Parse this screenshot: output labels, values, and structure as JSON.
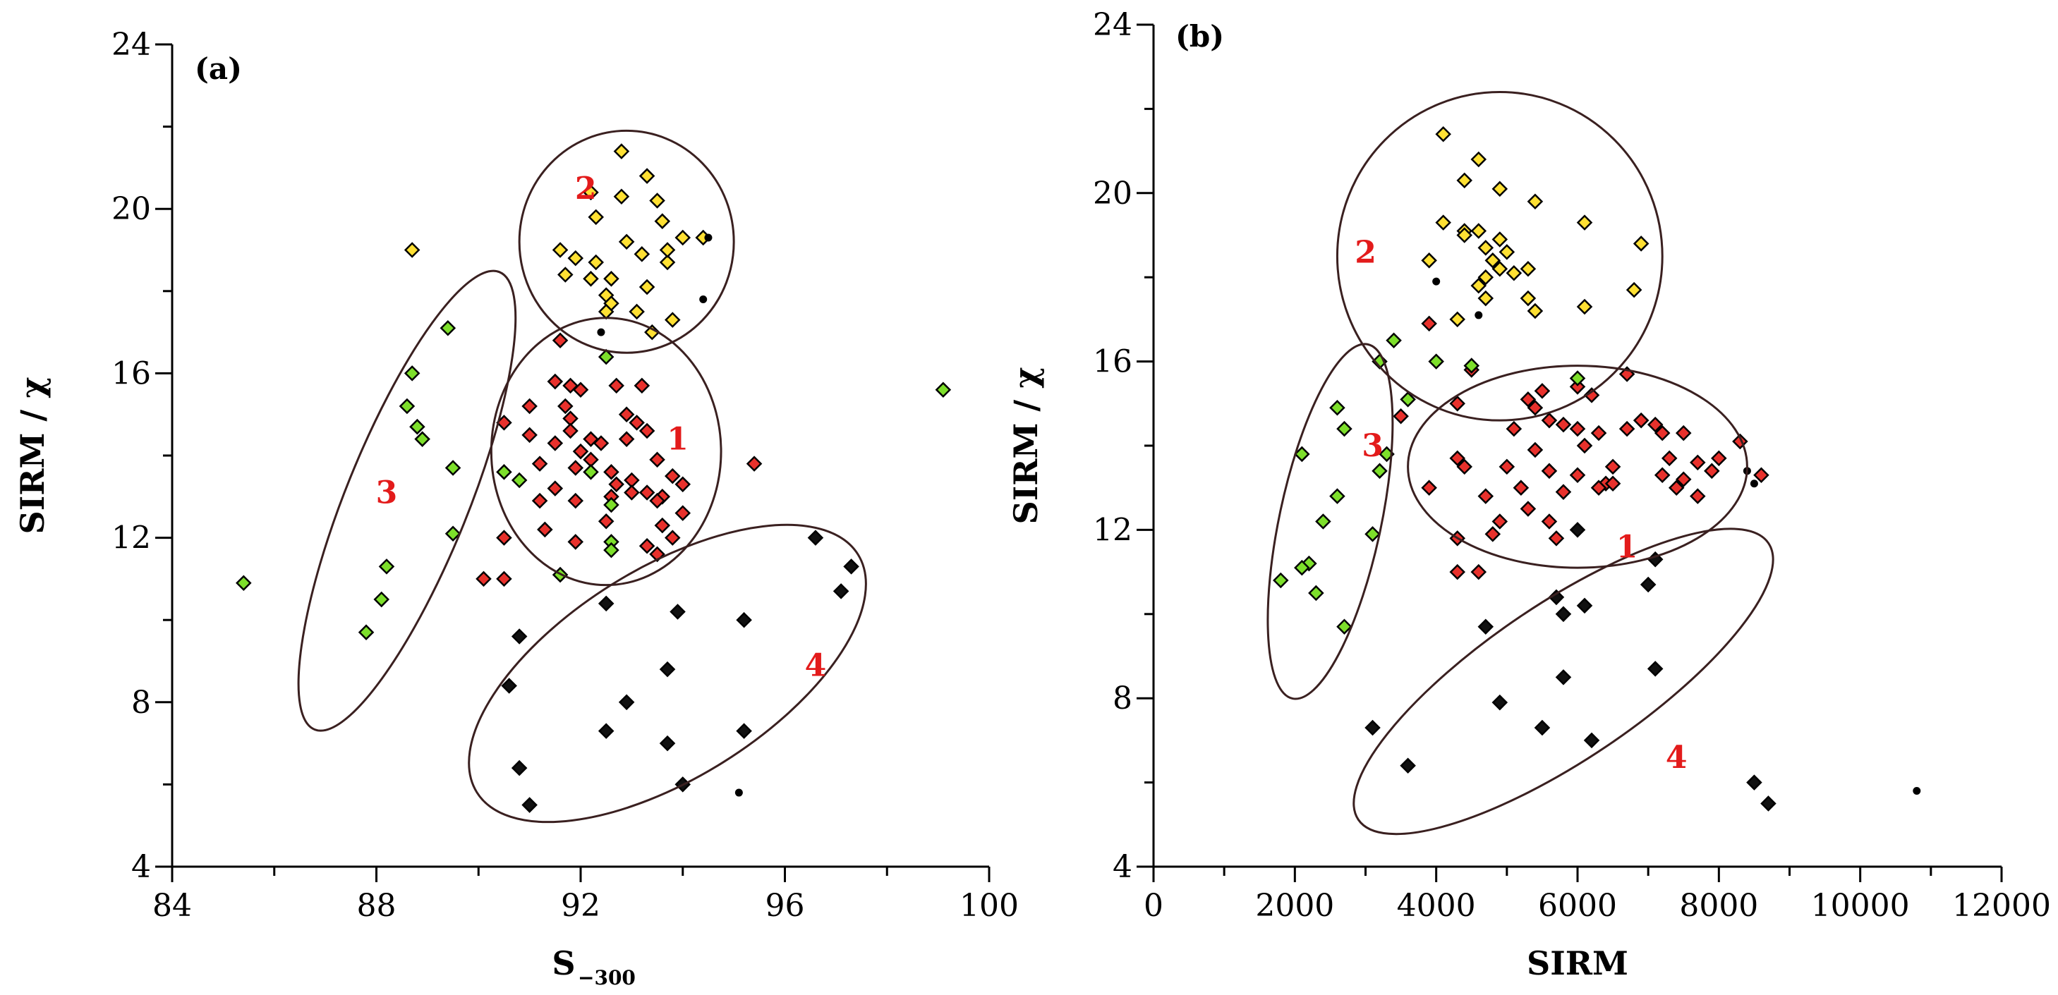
{
  "colors": {
    "1": "#e8312c",
    "2": "#ffe033",
    "3": "#7ddf2b",
    "4": "#111111",
    "label": "#e31b1b"
  },
  "chart_data": [
    {
      "panel": "(a)",
      "type": "scatter",
      "xlabel": "S",
      "xlabel_sub": "−300",
      "ylabel": "SIRM / χ",
      "xlim": [
        84,
        100
      ],
      "ylim": [
        4,
        24
      ],
      "xticks": [
        "84",
        "88",
        "92",
        "96",
        "100"
      ],
      "yticks": [
        "4",
        "8",
        "12",
        "16",
        "20",
        "24"
      ],
      "cluster_labels": [
        {
          "text": "1",
          "x": 93.9,
          "y": 14.4
        },
        {
          "text": "2",
          "x": 92.1,
          "y": 20.5
        },
        {
          "text": "3",
          "x": 88.2,
          "y": 13.1
        },
        {
          "text": "4",
          "x": 96.6,
          "y": 8.9
        }
      ],
      "ellipses": [
        {
          "cx": 92.5,
          "cy": 14.1,
          "rx": 2.25,
          "ry": 3.25,
          "angle": 0
        },
        {
          "cx": 92.9,
          "cy": 19.2,
          "rx": 2.1,
          "ry": 2.7,
          "angle": 0
        },
        {
          "cx": 88.6,
          "cy": 12.9,
          "rx": 1.2,
          "ry": 6.0,
          "angle": 22
        },
        {
          "cx": 93.7,
          "cy": 8.7,
          "rx": 4.4,
          "ry": 2.55,
          "angle": -32
        }
      ],
      "series": [
        {
          "name": "1",
          "points": [
            [
              91.5,
              15.8
            ],
            [
              91.8,
              15.7
            ],
            [
              92.0,
              15.6
            ],
            [
              92.7,
              15.7
            ],
            [
              93.2,
              15.7
            ],
            [
              91.0,
              15.2
            ],
            [
              91.7,
              15.2
            ],
            [
              92.9,
              15.0
            ],
            [
              90.5,
              14.8
            ],
            [
              91.8,
              14.9
            ],
            [
              93.1,
              14.8
            ],
            [
              93.3,
              14.6
            ],
            [
              91.0,
              14.5
            ],
            [
              91.5,
              14.3
            ],
            [
              91.8,
              14.6
            ],
            [
              92.2,
              14.4
            ],
            [
              92.4,
              14.3
            ],
            [
              92.9,
              14.4
            ],
            [
              92.0,
              14.1
            ],
            [
              91.2,
              13.8
            ],
            [
              92.2,
              13.9
            ],
            [
              93.5,
              13.9
            ],
            [
              91.9,
              13.7
            ],
            [
              92.6,
              13.6
            ],
            [
              93.0,
              13.4
            ],
            [
              93.8,
              13.5
            ],
            [
              94.0,
              13.3
            ],
            [
              91.5,
              13.2
            ],
            [
              92.7,
              13.3
            ],
            [
              93.3,
              13.1
            ],
            [
              93.6,
              13.0
            ],
            [
              91.9,
              12.9
            ],
            [
              92.6,
              13.0
            ],
            [
              93.0,
              13.1
            ],
            [
              91.2,
              12.9
            ],
            [
              93.5,
              12.9
            ],
            [
              94.0,
              12.6
            ],
            [
              92.5,
              12.4
            ],
            [
              90.5,
              12.0
            ],
            [
              91.9,
              11.9
            ],
            [
              93.3,
              11.8
            ],
            [
              93.5,
              11.6
            ],
            [
              93.8,
              12.0
            ],
            [
              90.1,
              11.0
            ],
            [
              90.5,
              11.0
            ],
            [
              95.4,
              13.8
            ],
            [
              91.3,
              12.2
            ],
            [
              93.6,
              12.3
            ],
            [
              91.6,
              16.8
            ]
          ]
        },
        {
          "name": "2",
          "points": [
            [
              92.8,
              21.4
            ],
            [
              93.3,
              20.8
            ],
            [
              92.2,
              20.4
            ],
            [
              92.8,
              20.3
            ],
            [
              93.5,
              20.2
            ],
            [
              92.3,
              19.8
            ],
            [
              93.6,
              19.7
            ],
            [
              88.7,
              19.0
            ],
            [
              91.6,
              19.0
            ],
            [
              92.9,
              19.2
            ],
            [
              93.2,
              18.9
            ],
            [
              94.0,
              19.3
            ],
            [
              91.9,
              18.8
            ],
            [
              92.3,
              18.7
            ],
            [
              91.7,
              18.4
            ],
            [
              92.2,
              18.3
            ],
            [
              92.6,
              18.3
            ],
            [
              93.3,
              18.1
            ],
            [
              93.7,
              18.7
            ],
            [
              94.4,
              19.3
            ],
            [
              92.5,
              17.9
            ],
            [
              93.1,
              17.5
            ],
            [
              92.6,
              17.7
            ],
            [
              92.5,
              17.5
            ],
            [
              93.4,
              17.0
            ],
            [
              93.8,
              17.3
            ],
            [
              93.7,
              19.0
            ]
          ]
        },
        {
          "name": "3",
          "points": [
            [
              89.4,
              17.1
            ],
            [
              88.7,
              16.0
            ],
            [
              88.6,
              15.2
            ],
            [
              88.8,
              14.7
            ],
            [
              88.9,
              14.4
            ],
            [
              89.5,
              13.7
            ],
            [
              90.5,
              13.6
            ],
            [
              90.8,
              13.4
            ],
            [
              89.5,
              12.1
            ],
            [
              88.2,
              11.3
            ],
            [
              88.1,
              10.5
            ],
            [
              87.8,
              9.7
            ],
            [
              85.4,
              10.9
            ],
            [
              91.6,
              11.1
            ],
            [
              92.2,
              13.6
            ],
            [
              92.6,
              12.8
            ],
            [
              92.6,
              11.9
            ],
            [
              92.6,
              11.7
            ],
            [
              92.5,
              16.4
            ],
            [
              99.1,
              15.6
            ]
          ]
        },
        {
          "name": "4",
          "points": [
            [
              90.6,
              8.4
            ],
            [
              90.8,
              9.6
            ],
            [
              92.5,
              10.4
            ],
            [
              93.9,
              10.2
            ],
            [
              95.2,
              10.0
            ],
            [
              96.6,
              12.0
            ],
            [
              97.3,
              11.3
            ],
            [
              97.1,
              10.7
            ],
            [
              92.9,
              8.0
            ],
            [
              93.7,
              8.8
            ],
            [
              92.5,
              7.3
            ],
            [
              93.7,
              7.0
            ],
            [
              95.2,
              7.3
            ],
            [
              94.0,
              6.0
            ],
            [
              90.8,
              6.4
            ],
            [
              91.0,
              5.5
            ]
          ]
        }
      ],
      "small_dots": [
        [
          94.4,
          17.8
        ],
        [
          94.5,
          19.3
        ],
        [
          95.1,
          5.8
        ],
        [
          92.4,
          17.0
        ]
      ]
    },
    {
      "panel": "(b)",
      "type": "scatter",
      "xlabel": "SIRM",
      "ylabel": "SIRM / χ",
      "xlim": [
        0,
        12000
      ],
      "ylim": [
        4,
        24
      ],
      "xticks": [
        "0",
        "2000",
        "4000",
        "6000",
        "8000",
        "10000",
        "12000"
      ],
      "yticks": [
        "4",
        "8",
        "12",
        "16",
        "20",
        "24"
      ],
      "cluster_labels": [
        {
          "text": "1",
          "x": 6700,
          "y": 11.6
        },
        {
          "text": "2",
          "x": 3000,
          "y": 18.6
        },
        {
          "text": "3",
          "x": 3100,
          "y": 14.0
        },
        {
          "text": "4",
          "x": 7400,
          "y": 6.6
        }
      ],
      "ellipses": [
        {
          "cx": 4900,
          "cy": 18.5,
          "rx": 2300,
          "ry": 3.9,
          "angle": 0
        },
        {
          "cx": 6000,
          "cy": 13.5,
          "rx": 2400,
          "ry": 2.4,
          "angle": 0
        },
        {
          "cx": 2500,
          "cy": 12.2,
          "rx": 720,
          "ry": 4.3,
          "angle": 12
        },
        {
          "cx": 5800,
          "cy": 8.4,
          "rx": 3500,
          "ry": 1.85,
          "angle": -34
        }
      ],
      "series": [
        {
          "name": "1",
          "points": [
            [
              3900,
              16.9
            ],
            [
              4300,
              15.0
            ],
            [
              4500,
              15.8
            ],
            [
              5300,
              15.1
            ],
            [
              5500,
              15.3
            ],
            [
              5400,
              14.9
            ],
            [
              5600,
              14.6
            ],
            [
              6000,
              15.4
            ],
            [
              6200,
              15.2
            ],
            [
              6700,
              15.7
            ],
            [
              5100,
              14.4
            ],
            [
              5800,
              14.5
            ],
            [
              6000,
              14.4
            ],
            [
              6300,
              14.3
            ],
            [
              6700,
              14.4
            ],
            [
              6900,
              14.6
            ],
            [
              7100,
              14.5
            ],
            [
              7200,
              14.3
            ],
            [
              7500,
              14.3
            ],
            [
              3500,
              14.7
            ],
            [
              5400,
              13.9
            ],
            [
              6100,
              14.0
            ],
            [
              6500,
              13.5
            ],
            [
              7300,
              13.7
            ],
            [
              7700,
              13.6
            ],
            [
              8000,
              13.7
            ],
            [
              8300,
              14.1
            ],
            [
              4300,
              13.7
            ],
            [
              4400,
              13.5
            ],
            [
              5000,
              13.5
            ],
            [
              5600,
              13.4
            ],
            [
              6000,
              13.3
            ],
            [
              6400,
              13.1
            ],
            [
              7200,
              13.3
            ],
            [
              7500,
              13.2
            ],
            [
              7900,
              13.4
            ],
            [
              8600,
              13.3
            ],
            [
              3900,
              13.0
            ],
            [
              4700,
              12.8
            ],
            [
              5200,
              13.0
            ],
            [
              5800,
              12.9
            ],
            [
              6300,
              13.0
            ],
            [
              7400,
              13.0
            ],
            [
              7700,
              12.8
            ],
            [
              5300,
              12.5
            ],
            [
              5600,
              12.2
            ],
            [
              4900,
              12.2
            ],
            [
              5700,
              11.8
            ],
            [
              4800,
              11.9
            ],
            [
              4300,
              11.8
            ],
            [
              4300,
              11.0
            ],
            [
              4600,
              11.0
            ],
            [
              6500,
              13.1
            ]
          ]
        },
        {
          "name": "2",
          "points": [
            [
              4100,
              21.4
            ],
            [
              4600,
              20.8
            ],
            [
              4400,
              20.3
            ],
            [
              4900,
              20.1
            ],
            [
              5400,
              19.8
            ],
            [
              6100,
              19.3
            ],
            [
              4100,
              19.3
            ],
            [
              4400,
              19.1
            ],
            [
              4600,
              19.1
            ],
            [
              4900,
              18.9
            ],
            [
              4700,
              18.7
            ],
            [
              5000,
              18.6
            ],
            [
              5300,
              18.2
            ],
            [
              3900,
              18.4
            ],
            [
              4800,
              18.4
            ],
            [
              4900,
              18.2
            ],
            [
              5100,
              18.1
            ],
            [
              4700,
              18.0
            ],
            [
              4600,
              17.8
            ],
            [
              5300,
              17.5
            ],
            [
              5400,
              17.2
            ],
            [
              6100,
              17.3
            ],
            [
              6900,
              18.8
            ],
            [
              6800,
              17.7
            ],
            [
              4300,
              17.0
            ],
            [
              4400,
              19.0
            ],
            [
              4700,
              17.5
            ]
          ]
        },
        {
          "name": "3",
          "points": [
            [
              3200,
              16.0
            ],
            [
              3400,
              16.5
            ],
            [
              3600,
              15.1
            ],
            [
              2600,
              14.9
            ],
            [
              2700,
              14.4
            ],
            [
              3300,
              13.8
            ],
            [
              2100,
              13.8
            ],
            [
              3200,
              13.4
            ],
            [
              2600,
              12.8
            ],
            [
              2400,
              12.2
            ],
            [
              3100,
              11.9
            ],
            [
              2200,
              11.2
            ],
            [
              2100,
              11.1
            ],
            [
              2300,
              10.5
            ],
            [
              1800,
              10.8
            ],
            [
              2700,
              9.7
            ],
            [
              4500,
              15.9
            ],
            [
              6000,
              15.6
            ],
            [
              4000,
              16.0
            ]
          ]
        },
        {
          "name": "4",
          "points": [
            [
              6000,
              12.0
            ],
            [
              7100,
              11.3
            ],
            [
              7000,
              10.7
            ],
            [
              5700,
              10.4
            ],
            [
              5800,
              10.0
            ],
            [
              6100,
              10.2
            ],
            [
              4700,
              9.7
            ],
            [
              7100,
              8.7
            ],
            [
              5800,
              8.5
            ],
            [
              4900,
              7.9
            ],
            [
              5500,
              7.3
            ],
            [
              6200,
              7.0
            ],
            [
              3100,
              7.3
            ],
            [
              3600,
              6.4
            ],
            [
              8500,
              6.0
            ],
            [
              8700,
              5.5
            ]
          ]
        }
      ],
      "small_dots": [
        [
          4000,
          17.9
        ],
        [
          4600,
          17.1
        ],
        [
          8400,
          13.4
        ],
        [
          8500,
          13.1
        ],
        [
          10800,
          5.8
        ]
      ]
    }
  ]
}
